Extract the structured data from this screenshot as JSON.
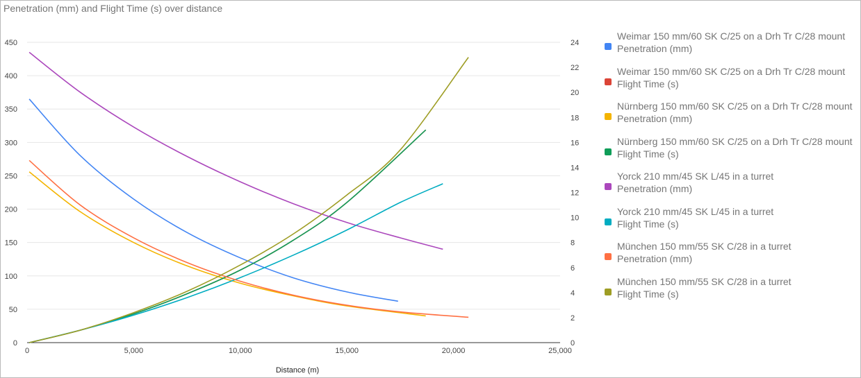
{
  "chart_data": {
    "type": "line",
    "title": "Penetration (mm) and Flight Time (s) over distance",
    "xlabel": "Distance (m)",
    "ylabel": "",
    "y2label": "",
    "xlim": [
      0,
      25000
    ],
    "ylim": [
      0,
      450
    ],
    "y2lim": [
      0,
      24
    ],
    "x_ticks": [
      "0",
      "5,000",
      "10,000",
      "15,000",
      "20,000",
      "25,000"
    ],
    "y_ticks": [
      "0",
      "50",
      "100",
      "150",
      "200",
      "250",
      "300",
      "350",
      "400",
      "450"
    ],
    "y2_ticks": [
      "0",
      "2",
      "4",
      "6",
      "8",
      "10",
      "12",
      "14",
      "16",
      "18",
      "20",
      "22",
      "24"
    ],
    "grid": true,
    "legend_position": "right",
    "series": [
      {
        "name": "Weimar 150 mm/60 SK C/25 on a Drh Tr C/28 mount\nPenetration (mm)",
        "axis": "left",
        "color": "#4285F4",
        "x": [
          100,
          2500,
          5000,
          7500,
          10000,
          12500,
          15000,
          17400
        ],
        "y": [
          365,
          280,
          215,
          165,
          127,
          97,
          76,
          62
        ]
      },
      {
        "name": "Weimar 150 mm/60 SK C/25 on a Drh Tr C/28 mount\nFlight Time (s)",
        "axis": "right",
        "color": "#DB4437",
        "x": [
          100,
          2500,
          5000,
          7500,
          10000,
          12500,
          15000,
          18700
        ],
        "y": [
          0,
          1.0,
          2.3,
          3.9,
          5.8,
          8.2,
          11.2,
          17.0
        ]
      },
      {
        "name": "Nürnberg 150 mm/60 SK C/25 on a Drh Tr C/28 mount\nPenetration (mm)",
        "axis": "left",
        "color": "#F4B400",
        "x": [
          100,
          2500,
          5000,
          7500,
          10000,
          12500,
          15000,
          18700
        ],
        "y": [
          256,
          196,
          150,
          115,
          89,
          70,
          55,
          40
        ]
      },
      {
        "name": "Nürnberg 150 mm/60 SK C/25 on a Drh Tr C/28 mount\nFlight Time (s)",
        "axis": "right",
        "color": "#0F9D58",
        "x": [
          100,
          2500,
          5000,
          7500,
          10000,
          12500,
          15000,
          18700
        ],
        "y": [
          0,
          1.0,
          2.3,
          3.9,
          5.8,
          8.2,
          11.2,
          17.0
        ]
      },
      {
        "name": "Yorck 210 mm/45 SK L/45 in a turret\nPenetration (mm)",
        "axis": "left",
        "color": "#AB47BC",
        "x": [
          100,
          2500,
          5000,
          7500,
          10000,
          12500,
          15000,
          17500,
          19500
        ],
        "y": [
          435,
          375,
          323,
          279,
          241,
          208,
          180,
          157,
          140
        ]
      },
      {
        "name": "Yorck 210 mm/45 SK L/45 in a turret\nFlight Time (s)",
        "axis": "right",
        "color": "#00ACC1",
        "x": [
          100,
          2500,
          5000,
          7500,
          10000,
          12500,
          15000,
          17500,
          19500
        ],
        "y": [
          0,
          1.0,
          2.2,
          3.6,
          5.2,
          7.0,
          9.0,
          11.2,
          12.7
        ]
      },
      {
        "name": "München 150 mm/55 SK C/28 in a turret\nPenetration (mm)",
        "axis": "left",
        "color": "#FF7043",
        "x": [
          100,
          2500,
          5000,
          7500,
          10000,
          12500,
          15000,
          17500,
          20700
        ],
        "y": [
          273,
          206,
          157,
          120,
          92,
          71,
          56,
          46,
          38
        ]
      },
      {
        "name": "München 150 mm/55 SK C/28 in a turret\nFlight Time (s)",
        "axis": "right",
        "color": "#9E9D24",
        "x": [
          100,
          2500,
          5000,
          7500,
          10000,
          12500,
          15000,
          17500,
          20700
        ],
        "y": [
          0,
          1.0,
          2.4,
          4.1,
          6.2,
          8.7,
          11.8,
          15.4,
          22.8
        ]
      }
    ]
  }
}
